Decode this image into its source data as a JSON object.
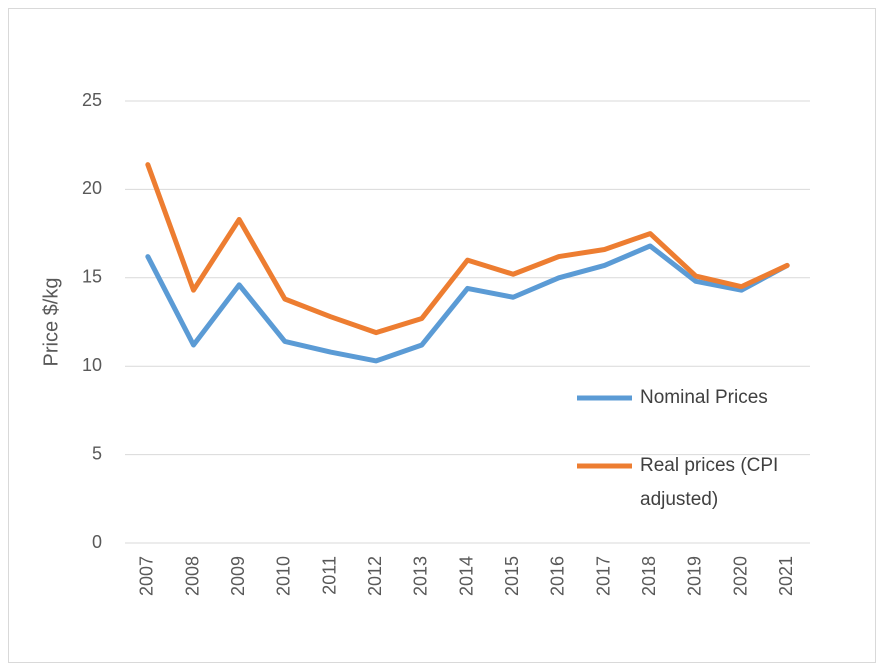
{
  "chart_data": {
    "type": "line",
    "y_label": "Price $/kg",
    "categories": [
      "2007",
      "2008",
      "2009",
      "2010",
      "2011",
      "2012",
      "2013",
      "2014",
      "2015",
      "2016",
      "2017",
      "2018",
      "2019",
      "2020",
      "2021"
    ],
    "series": [
      {
        "name": "Nominal Prices",
        "color": "#5b9bd5",
        "values": [
          16.2,
          11.2,
          14.6,
          11.4,
          10.8,
          10.3,
          11.2,
          14.4,
          13.9,
          15.0,
          15.7,
          16.8,
          14.8,
          14.3,
          15.7
        ]
      },
      {
        "name": "Real prices (CPI adjusted)",
        "color": "#ed7d31",
        "values": [
          21.4,
          14.3,
          18.3,
          13.8,
          12.8,
          11.9,
          12.7,
          16.0,
          15.2,
          16.2,
          16.6,
          17.5,
          15.1,
          14.5,
          15.7
        ]
      }
    ],
    "ylim": [
      0,
      25
    ],
    "yticks": [
      0,
      5,
      10,
      15,
      20,
      25
    ],
    "grid": true
  }
}
